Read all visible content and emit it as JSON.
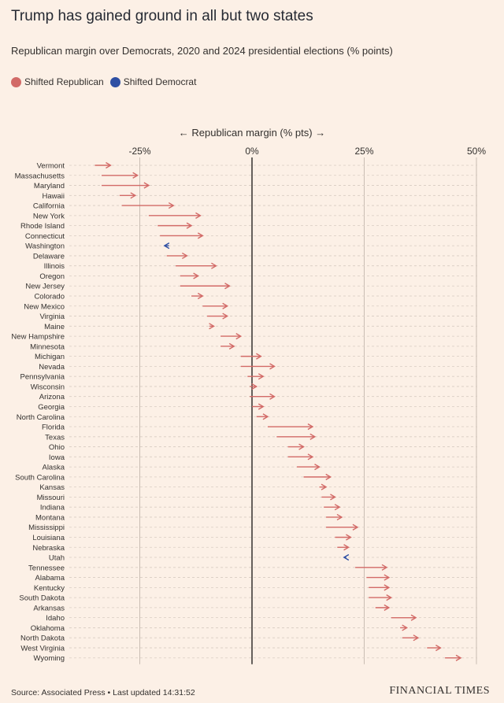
{
  "title": "Trump has gained ground in all but two states",
  "subtitle": "Republican margin over Democrats, 2020 and 2024 presidential elections (% points)",
  "legend": {
    "republican": {
      "label": "Shifted Republican",
      "color": "#d26a67"
    },
    "democrat": {
      "label": "Shifted Democrat",
      "color": "#2e4fa3"
    }
  },
  "chart_data": {
    "type": "arrow-dot",
    "axis_label": "← Republican margin (% pts) →",
    "x_ticks": [
      -25,
      0,
      25,
      50
    ],
    "x_tick_labels": [
      "-25%",
      "0%",
      "25%",
      "50%"
    ],
    "xlim": [
      -33,
      51
    ],
    "grid": true,
    "series_note": "Each row: 2020 margin → 2024 margin",
    "rows": [
      {
        "state": "Vermont",
        "from": -35,
        "to": -31.5
      },
      {
        "state": "Massachusetts",
        "from": -33.5,
        "to": -25.5
      },
      {
        "state": "Maryland",
        "from": -33.5,
        "to": -23
      },
      {
        "state": "Hawaii",
        "from": -29.5,
        "to": -26
      },
      {
        "state": "California",
        "from": -29,
        "to": -17.5
      },
      {
        "state": "New York",
        "from": -23,
        "to": -11.5
      },
      {
        "state": "Rhode Island",
        "from": -21,
        "to": -13.5
      },
      {
        "state": "Connecticut",
        "from": -20.5,
        "to": -11
      },
      {
        "state": "Washington",
        "from": -18.5,
        "to": -19.5
      },
      {
        "state": "Delaware",
        "from": -19,
        "to": -14.5
      },
      {
        "state": "Illinois",
        "from": -17,
        "to": -8
      },
      {
        "state": "Oregon",
        "from": -16,
        "to": -12
      },
      {
        "state": "New Jersey",
        "from": -16,
        "to": -5
      },
      {
        "state": "Colorado",
        "from": -13.5,
        "to": -11
      },
      {
        "state": "New Mexico",
        "from": -11,
        "to": -5.5
      },
      {
        "state": "Virginia",
        "from": -10,
        "to": -5.5
      },
      {
        "state": "Maine",
        "from": -9.5,
        "to": -8.5
      },
      {
        "state": "New Hampshire",
        "from": -7,
        "to": -2.5
      },
      {
        "state": "Minnesota",
        "from": -7,
        "to": -4
      },
      {
        "state": "Michigan",
        "from": -2.5,
        "to": 2
      },
      {
        "state": "Nevada",
        "from": -2.5,
        "to": 5
      },
      {
        "state": "Pennsylvania",
        "from": -1,
        "to": 2.5
      },
      {
        "state": "Wisconsin",
        "from": -0.5,
        "to": 1
      },
      {
        "state": "Arizona",
        "from": -0.5,
        "to": 5
      },
      {
        "state": "Georgia",
        "from": 0,
        "to": 2.5
      },
      {
        "state": "North Carolina",
        "from": 1,
        "to": 3.5
      },
      {
        "state": "Florida",
        "from": 3.5,
        "to": 13.5
      },
      {
        "state": "Texas",
        "from": 5.5,
        "to": 14
      },
      {
        "state": "Ohio",
        "from": 8,
        "to": 11.5
      },
      {
        "state": "Iowa",
        "from": 8,
        "to": 13.5
      },
      {
        "state": "Alaska",
        "from": 10,
        "to": 15
      },
      {
        "state": "South Carolina",
        "from": 11.5,
        "to": 17.5
      },
      {
        "state": "Kansas",
        "from": 15,
        "to": 16.5
      },
      {
        "state": "Missouri",
        "from": 15.5,
        "to": 18.5
      },
      {
        "state": "Indiana",
        "from": 16,
        "to": 19.5
      },
      {
        "state": "Montana",
        "from": 16.5,
        "to": 20
      },
      {
        "state": "Mississippi",
        "from": 16.5,
        "to": 23.5
      },
      {
        "state": "Louisiana",
        "from": 18.5,
        "to": 22
      },
      {
        "state": "Nebraska",
        "from": 19,
        "to": 21.5
      },
      {
        "state": "Utah",
        "from": 21,
        "to": 20.5
      },
      {
        "state": "Tennessee",
        "from": 23,
        "to": 30
      },
      {
        "state": "Alabama",
        "from": 25.5,
        "to": 30.5
      },
      {
        "state": "Kentucky",
        "from": 26,
        "to": 30.5
      },
      {
        "state": "South Dakota",
        "from": 26,
        "to": 31
      },
      {
        "state": "Arkansas",
        "from": 27.5,
        "to": 30.5
      },
      {
        "state": "Idaho",
        "from": 31,
        "to": 36.5
      },
      {
        "state": "Oklahoma",
        "from": 33,
        "to": 34.5
      },
      {
        "state": "North Dakota",
        "from": 33.5,
        "to": 37
      },
      {
        "state": "West Virginia",
        "from": 39,
        "to": 42
      },
      {
        "state": "Wyoming",
        "from": 43,
        "to": 46.5
      }
    ]
  },
  "footer": {
    "source": "Source: Associated Press • Last updated 14:31:52",
    "brand": "FINANCIAL TIMES"
  }
}
